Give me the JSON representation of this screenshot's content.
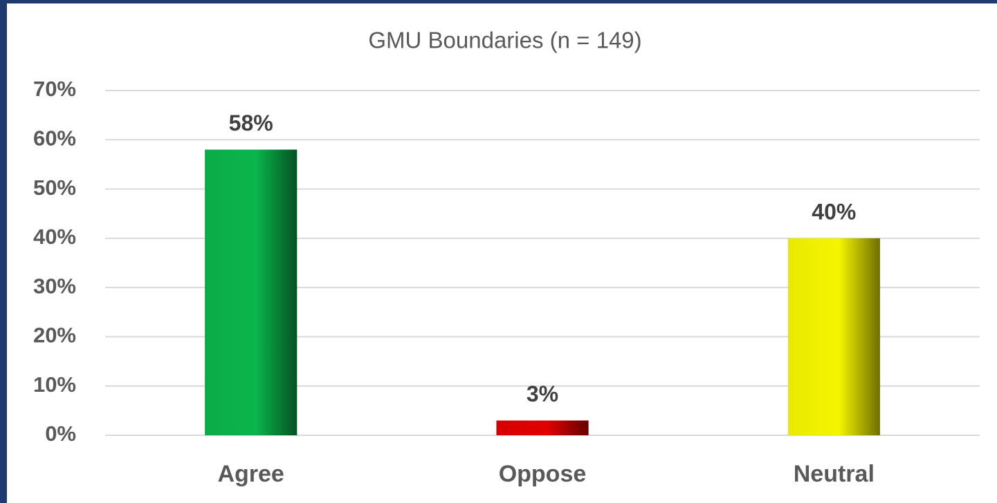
{
  "chart_data": {
    "type": "bar",
    "title": "GMU Boundaries (n = 149)",
    "categories": [
      "Agree",
      "Oppose",
      "Neutral"
    ],
    "values": [
      58,
      3,
      40
    ],
    "value_labels": [
      "58%",
      "3%",
      "40%"
    ],
    "colors": [
      "#0ab54c",
      "#e00000",
      "#f5f500"
    ],
    "ylim": [
      0,
      70
    ],
    "yticks": [
      {
        "value": 0,
        "label": "0%"
      },
      {
        "value": 10,
        "label": "10%"
      },
      {
        "value": 20,
        "label": "20%"
      },
      {
        "value": 30,
        "label": "30%"
      },
      {
        "value": 40,
        "label": "40%"
      },
      {
        "value": 50,
        "label": "50%"
      },
      {
        "value": 60,
        "label": "60%"
      },
      {
        "value": 70,
        "label": "70%"
      }
    ],
    "grid": true
  }
}
